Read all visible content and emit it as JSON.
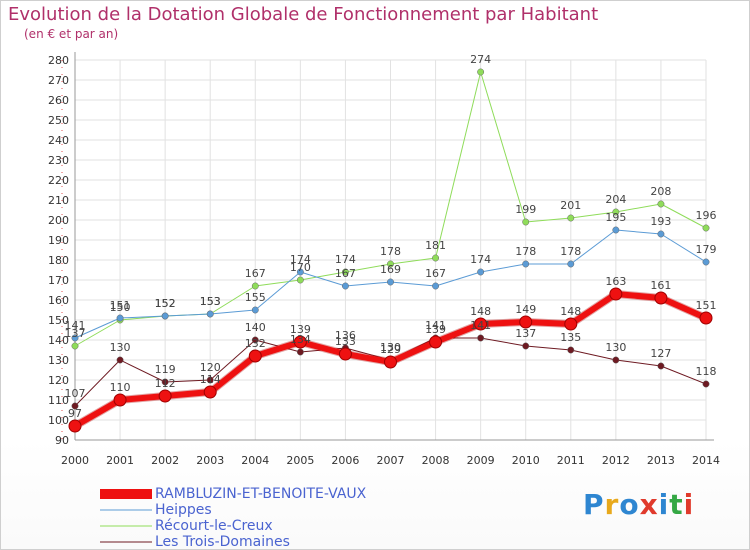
{
  "title": "Evolution de la Dotation Globale de Fonctionnement par Habitant",
  "subtitle": "(en € et par an)",
  "logo": {
    "text": "Proxiti",
    "colors": [
      "#2e86d1",
      "#e8a91c",
      "#2e86d1",
      "#e03a2c",
      "#2e86d1",
      "#35a845",
      "#e03a2c"
    ]
  },
  "chart_data": {
    "type": "line",
    "title": "Evolution de la Dotation Globale de Fonctionnement par Habitant",
    "subtitle": "(en € et par an)",
    "x": [
      "2000",
      "2001",
      "2002",
      "2003",
      "2004",
      "2005",
      "2006",
      "2007",
      "2008",
      "2009",
      "2010",
      "2011",
      "2012",
      "2013",
      "2014"
    ],
    "ylim": [
      90,
      280
    ],
    "yticks": [
      90,
      100,
      110,
      120,
      130,
      140,
      150,
      160,
      170,
      180,
      190,
      200,
      210,
      220,
      230,
      240,
      250,
      260,
      270,
      280
    ],
    "grid": true,
    "legend_position": "bottom-left",
    "series": [
      {
        "name": "Les Trois-Domaines",
        "color": "#6e1a22",
        "width": 1,
        "values": [
          107,
          130,
          119,
          120,
          140,
          134,
          136,
          130,
          141,
          141,
          137,
          135,
          130,
          127,
          118
        ]
      },
      {
        "name": "Récourt-le-Creux",
        "color": "#8fdc5a",
        "width": 1,
        "values": [
          137,
          150,
          152,
          153,
          167,
          170,
          174,
          178,
          181,
          274,
          199,
          201,
          204,
          208,
          196
        ]
      },
      {
        "name": "Heippes",
        "color": "#5b9bd5",
        "width": 1,
        "values": [
          141,
          151,
          152,
          153,
          155,
          174,
          167,
          169,
          167,
          174,
          178,
          178,
          195,
          193,
          179
        ]
      },
      {
        "name": "RAMBLUZIN-ET-BENOITE-VAUX",
        "color": "#ee1111",
        "width": 6,
        "values": [
          97,
          110,
          112,
          114,
          132,
          139,
          133,
          129,
          139,
          148,
          149,
          148,
          163,
          161,
          151
        ]
      }
    ],
    "legend_order": [
      "RAMBLUZIN-ET-BENOITE-VAUX",
      "Heippes",
      "Récourt-le-Creux",
      "Les Trois-Domaines"
    ]
  }
}
